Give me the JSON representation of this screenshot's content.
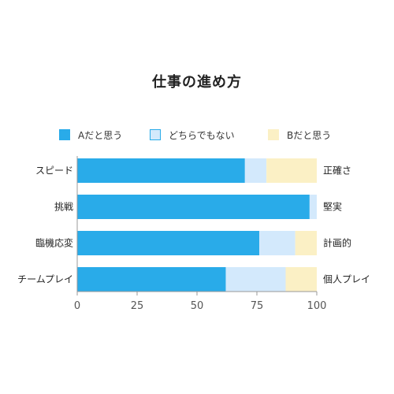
{
  "chart_data": {
    "type": "bar",
    "orientation": "horizontal",
    "stacked": true,
    "title": "仕事の進め方",
    "categories": [
      "スピード",
      "挑戦",
      "臨機応変",
      "チームプレイ"
    ],
    "right_labels": [
      "正確さ",
      "堅実",
      "計画的",
      "個人プレイ"
    ],
    "series": [
      {
        "name": "Aだと思う",
        "values": [
          70,
          97,
          76,
          62
        ],
        "color": "#29abe9"
      },
      {
        "name": "どちらでもない",
        "values": [
          9,
          3,
          15,
          25
        ],
        "color": "#d3e9fc",
        "border": "#29abe9"
      },
      {
        "name": "Bだと思う",
        "values": [
          21,
          0,
          9,
          13
        ],
        "color": "#fbf0c5"
      }
    ],
    "xlim": [
      0,
      100
    ],
    "xticks": [
      0,
      25,
      50,
      75,
      100
    ],
    "grid": false,
    "legend_position": "top"
  }
}
